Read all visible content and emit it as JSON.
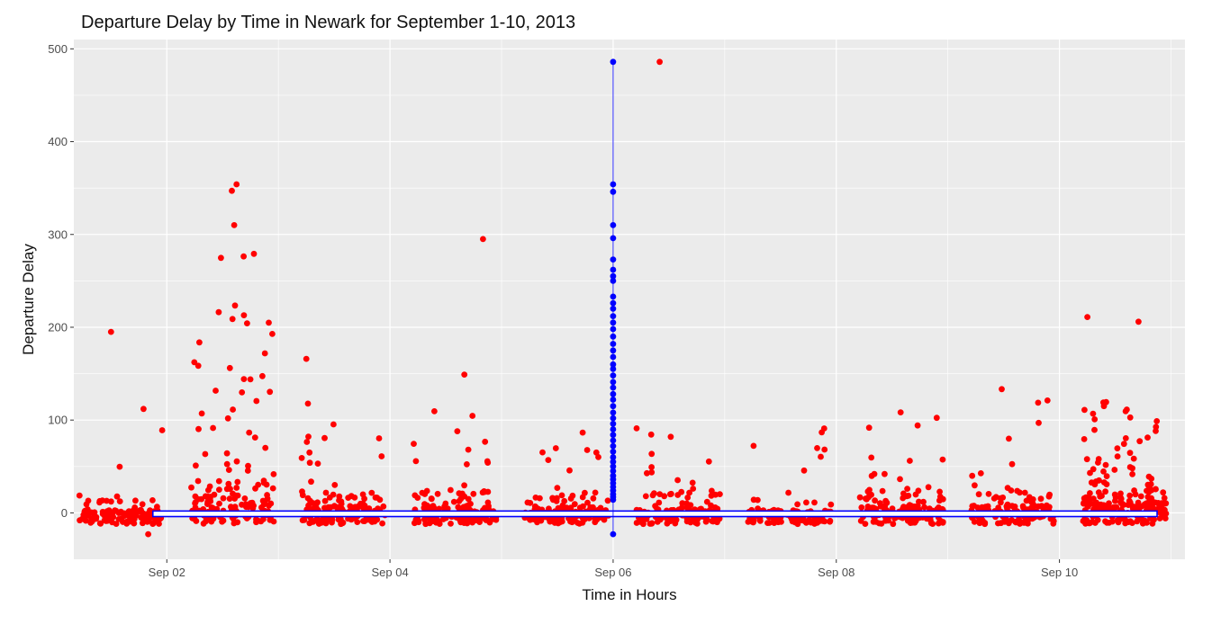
{
  "chart_data": {
    "type": "scatter",
    "title": "Departure Delay by Time in Newark for September 1-10, 2013",
    "xlabel": "Time in Hours",
    "ylabel": "Departure Delay",
    "x_unit": "date (September 2013)",
    "xlim": [
      "2013-09-01 04:00",
      "2013-09-11 03:00"
    ],
    "ylim": [
      -50,
      510
    ],
    "x_ticks": [
      "Sep 02",
      "Sep 04",
      "Sep 06",
      "Sep 08",
      "Sep 10"
    ],
    "y_ticks": [
      0,
      100,
      200,
      300,
      400,
      500
    ],
    "grid": true,
    "background": "#ebebeb",
    "grid_color": "#ffffff",
    "series": [
      {
        "color": "#ff0000",
        "description_points": "main scatter: daily clusters of departure delays (minutes)",
        "days": [
          {
            "start": "2013-09-01 05:00",
            "end": "2013-09-01 23:00",
            "n": 120,
            "spread": 15,
            "tail": 0.06,
            "tail_max": 90
          },
          {
            "start": "2013-09-02 05:00",
            "end": "2013-09-02 23:00",
            "n": 160,
            "spread": 25,
            "tail": 0.45,
            "tail_max": 280
          },
          {
            "start": "2013-09-03 05:00",
            "end": "2013-09-03 23:00",
            "n": 150,
            "spread": 20,
            "tail": 0.12,
            "tail_max": 140
          },
          {
            "start": "2013-09-04 05:00",
            "end": "2013-09-04 23:00",
            "n": 150,
            "spread": 20,
            "tail": 0.12,
            "tail_max": 110
          },
          {
            "start": "2013-09-05 05:00",
            "end": "2013-09-05 23:00",
            "n": 150,
            "spread": 18,
            "tail": 0.1,
            "tail_max": 90
          },
          {
            "start": "2013-09-06 05:00",
            "end": "2013-09-06 23:00",
            "n": 150,
            "spread": 18,
            "tail": 0.1,
            "tail_max": 100
          },
          {
            "start": "2013-09-07 05:00",
            "end": "2013-09-07 23:00",
            "n": 120,
            "spread": 15,
            "tail": 0.06,
            "tail_max": 100
          },
          {
            "start": "2013-09-08 05:00",
            "end": "2013-09-08 23:00",
            "n": 150,
            "spread": 20,
            "tail": 0.12,
            "tail_max": 115
          },
          {
            "start": "2013-09-09 05:00",
            "end": "2013-09-09 23:00",
            "n": 150,
            "spread": 20,
            "tail": 0.12,
            "tail_max": 140
          },
          {
            "start": "2013-09-10 05:00",
            "end": "2013-09-10 23:00",
            "n": 220,
            "spread": 25,
            "tail": 0.3,
            "tail_max": 130
          }
        ],
        "outliers": [
          {
            "x": "2013-09-01 12:00",
            "y": 195
          },
          {
            "x": "2013-09-01 19:00",
            "y": 112
          },
          {
            "x": "2013-09-01 23:00",
            "y": 89
          },
          {
            "x": "2013-09-01 20:00",
            "y": -23
          },
          {
            "x": "2013-09-02 14:00",
            "y": 347
          },
          {
            "x": "2013-09-02 15:00",
            "y": 354
          },
          {
            "x": "2013-09-02 14:30",
            "y": 310
          },
          {
            "x": "2013-09-03 06:00",
            "y": 166
          },
          {
            "x": "2013-09-04 20:00",
            "y": 295
          },
          {
            "x": "2013-09-04 16:00",
            "y": 149
          },
          {
            "x": "2013-09-06 10:00",
            "y": 486
          },
          {
            "x": "2013-09-10 06:00",
            "y": 211
          },
          {
            "x": "2013-09-10 17:00",
            "y": 206
          }
        ]
      },
      {
        "color": "#0000ff",
        "description_points": "vertical strip of points at Sep 06 00:00",
        "x": "2013-09-06 00:00",
        "values": [
          486,
          354,
          346,
          310,
          296,
          273,
          262,
          255,
          250,
          233,
          226,
          220,
          212,
          205,
          198,
          190,
          182,
          175,
          168,
          160,
          155,
          148,
          141,
          135,
          128,
          122,
          115,
          108,
          102,
          96,
          90,
          84,
          78,
          72,
          66,
          60,
          55,
          50,
          45,
          40,
          36,
          32,
          28,
          24,
          20,
          17,
          14,
          -23
        ]
      }
    ],
    "annotation_box": {
      "color": "#0000ff",
      "x_start": "2013-09-01 21:00",
      "x_end": "2013-09-10 21:00",
      "y_top": 2,
      "y_bottom": -4
    }
  }
}
